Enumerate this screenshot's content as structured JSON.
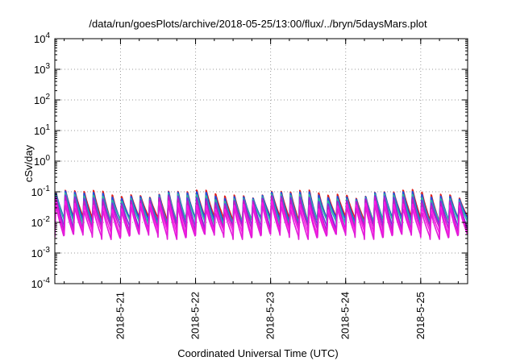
{
  "title": "/data/run/goesPlots/archive/2018-05-25/13:00/flux/../bryn/5daysMars.plot",
  "xlabel": "Coordinated Universal Time (UTC)",
  "ylabel": "cSv/day",
  "chart_data": {
    "type": "line",
    "title": "/data/run/goesPlots/archive/2018-05-25/13:00/flux/../bryn/5daysMars.plot",
    "xlabel": "Coordinated Universal Time (UTC)",
    "ylabel": "cSv/day",
    "yscale": "log",
    "ylim": [
      0.0001,
      10000
    ],
    "yticks": [
      {
        "value": 0.0001,
        "base": "10",
        "exp": "-4"
      },
      {
        "value": 0.001,
        "base": "10",
        "exp": "-3"
      },
      {
        "value": 0.01,
        "base": "10",
        "exp": "-2"
      },
      {
        "value": 0.1,
        "base": "10",
        "exp": "-1"
      },
      {
        "value": 1,
        "base": "10",
        "exp": "0"
      },
      {
        "value": 10,
        "base": "10",
        "exp": "1"
      },
      {
        "value": 100,
        "base": "10",
        "exp": "2"
      },
      {
        "value": 1000,
        "base": "10",
        "exp": "3"
      },
      {
        "value": 10000,
        "base": "10",
        "exp": "4"
      }
    ],
    "xlim": [
      "2018-05-20T03:00",
      "2018-05-25T15:00"
    ],
    "xticks": [
      {
        "value": "2018-05-21T00:00",
        "label": "2018-5-21"
      },
      {
        "value": "2018-05-22T00:00",
        "label": "2018-5-22"
      },
      {
        "value": "2018-05-23T00:00",
        "label": "2018-5-23"
      },
      {
        "value": "2018-05-24T00:00",
        "label": "2018-5-24"
      },
      {
        "value": "2018-05-25T00:00",
        "label": "2018-5-25"
      }
    ],
    "grid": true,
    "legend": "none",
    "pattern": {
      "cycle_hours": 3,
      "peak_near": 0.1,
      "trough_near": 0.005
    },
    "series": [
      {
        "color": "#e0201c",
        "peak": 0.105,
        "trough": 0.013
      },
      {
        "color": "#1f4fe0",
        "peak": 0.095,
        "trough": 0.0115
      },
      {
        "color": "#2ab7a0",
        "peak": 0.08,
        "trough": 0.01
      },
      {
        "color": "#7a2fe0",
        "peak": 0.07,
        "trough": 0.0072
      },
      {
        "color": "#c01cc8",
        "peak": 0.06,
        "trough": 0.0058
      },
      {
        "color": "#ff19e6",
        "peak": 0.045,
        "trough": 0.0045
      },
      {
        "color": "#e11bd8",
        "peak": 0.033,
        "trough": 0.0034
      }
    ]
  }
}
